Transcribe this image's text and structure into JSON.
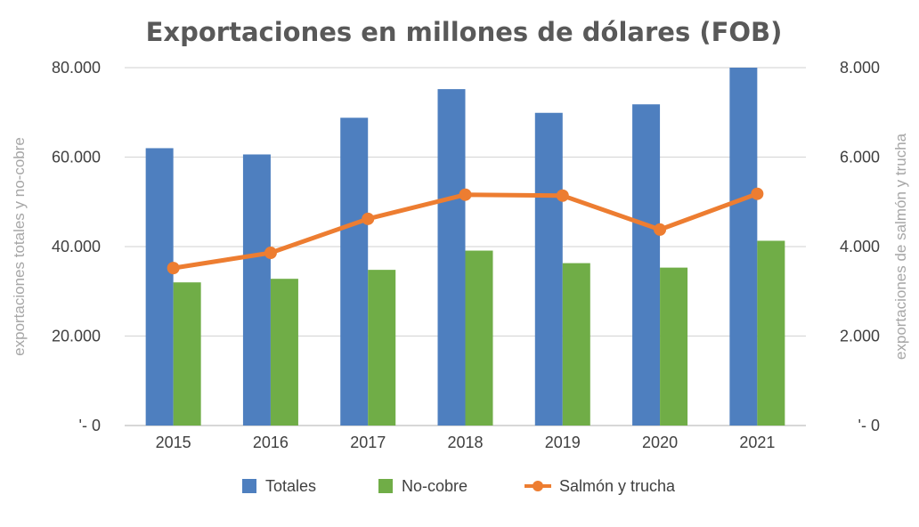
{
  "chart_data": {
    "type": "bar",
    "title": "Exportaciones en millones de dólares (FOB)",
    "categories": [
      "2015",
      "2016",
      "2017",
      "2018",
      "2019",
      "2020",
      "2021"
    ],
    "series": [
      {
        "name": "Totales",
        "kind": "bar",
        "axis": "left",
        "color": "#4e7fbf",
        "values": [
          62000,
          60600,
          68800,
          75200,
          69900,
          71800,
          80000
        ]
      },
      {
        "name": "No-cobre",
        "kind": "bar",
        "axis": "left",
        "color": "#70ad47",
        "values": [
          32000,
          32800,
          34800,
          39100,
          36300,
          35300,
          41300
        ]
      },
      {
        "name": "Salmón y trucha",
        "kind": "line",
        "axis": "right",
        "color": "#ed7d31",
        "values": [
          3520,
          3860,
          4620,
          5160,
          5140,
          4380,
          5180
        ]
      }
    ],
    "ylabel": "exportaciones totales y no-cobre",
    "y2label": "exportaciones de salmón y trucha",
    "ylim": [
      0,
      80000
    ],
    "y2lim": [
      0,
      8000
    ],
    "yticks": [
      80000,
      60000,
      40000,
      20000,
      0
    ],
    "ytick_labels": [
      "80.000",
      "60.000",
      "40.000",
      "20.000",
      "'- 0"
    ],
    "y2ticks": [
      8000,
      6000,
      4000,
      2000,
      0
    ],
    "y2tick_labels": [
      "8.000",
      "6.000",
      "4.000",
      "2.000",
      "'- 0"
    ],
    "grid": true,
    "legend_position": "bottom",
    "colors": {
      "gridline": "#d9d9d9",
      "title": "#595959",
      "axis_title": "#a6a6a6"
    }
  }
}
